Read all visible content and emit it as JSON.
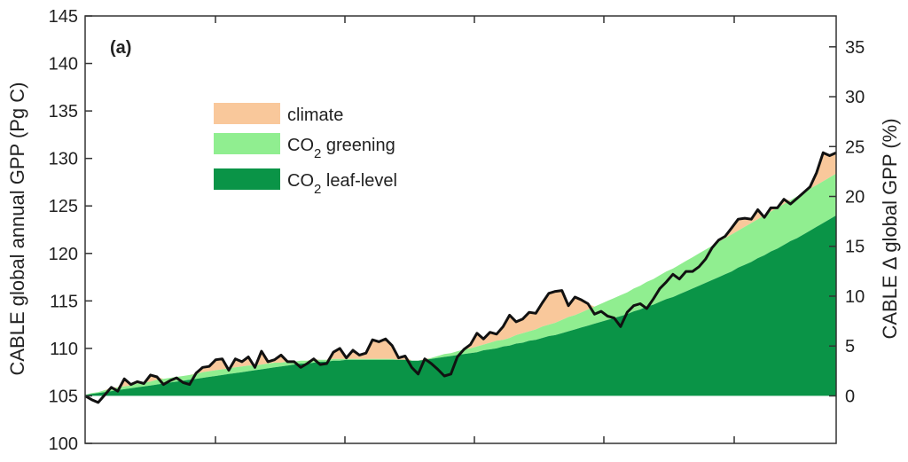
{
  "chart_data": {
    "type": "area",
    "panel_label": "(a)",
    "ylabel_left": "CABLE global annual GPP (Pg C)",
    "ylabel_right": "CABLE Δ  global GPP (%)",
    "ylim_left": [
      100,
      145
    ],
    "left_ticks": [
      100,
      105,
      110,
      115,
      120,
      125,
      130,
      135,
      140,
      145
    ],
    "right_ticks": [
      0,
      5,
      10,
      15,
      20,
      25,
      30,
      35
    ],
    "baseline": 105,
    "colors": {
      "climate": "#f9c89b",
      "co2_greening": "#90ee90",
      "co2_leaf_level": "#0a9447",
      "total_line": "#111111"
    },
    "legend_placement": "upper-left",
    "legend": [
      {
        "key": "climate",
        "label": "climate",
        "sub": ""
      },
      {
        "key": "co2_greening",
        "label": "CO",
        "sub": "2",
        "rest": " greening"
      },
      {
        "key": "co2_leaf_level",
        "label": "CO",
        "sub": "2",
        "rest": " leaf-level"
      }
    ],
    "x_count": 116,
    "series": [
      {
        "name": "total",
        "values": [
          105.0,
          104.6,
          104.3,
          105.1,
          105.9,
          105.5,
          106.8,
          106.2,
          106.5,
          106.3,
          107.2,
          107.0,
          106.2,
          106.6,
          106.9,
          106.4,
          106.2,
          107.4,
          108.0,
          108.1,
          108.8,
          108.9,
          107.7,
          108.9,
          108.6,
          109.1,
          108.0,
          109.7,
          108.6,
          108.8,
          109.3,
          108.6,
          108.6,
          108.0,
          108.4,
          108.9,
          108.3,
          108.4,
          109.6,
          110.0,
          109.0,
          109.8,
          109.3,
          109.5,
          110.9,
          110.7,
          111.0,
          110.3,
          109.0,
          109.2,
          108.0,
          107.3,
          108.9,
          108.4,
          107.8,
          107.1,
          107.3,
          109.1,
          109.9,
          110.4,
          111.6,
          111.0,
          111.7,
          111.5,
          112.3,
          113.5,
          112.8,
          113.1,
          113.8,
          113.7,
          114.8,
          115.8,
          116.0,
          116.1,
          114.5,
          115.4,
          115.1,
          114.7,
          113.6,
          113.9,
          113.4,
          113.2,
          112.3,
          113.8,
          114.5,
          114.7,
          114.2,
          115.2,
          116.3,
          117.0,
          117.8,
          117.3,
          118.1,
          118.1,
          118.6,
          119.4,
          120.6,
          121.4,
          121.8,
          122.7,
          123.6,
          123.7,
          123.6,
          124.6,
          123.8,
          124.8,
          124.8,
          125.7,
          125.2,
          125.8,
          126.4,
          127.0,
          128.5,
          130.6,
          130.3,
          130.6
        ]
      },
      {
        "name": "co2_greening_top",
        "values": [
          105.1,
          105.3,
          105.4,
          105.6,
          105.7,
          105.9,
          106.0,
          106.1,
          106.3,
          106.4,
          106.5,
          106.7,
          106.8,
          106.9,
          107.0,
          107.1,
          107.2,
          107.3,
          107.5,
          107.6,
          107.7,
          107.8,
          107.9,
          108.0,
          108.1,
          108.2,
          108.2,
          108.3,
          108.4,
          108.5,
          108.5,
          108.6,
          108.6,
          108.7,
          108.7,
          108.8,
          108.8,
          108.8,
          108.9,
          108.9,
          108.9,
          108.9,
          108.9,
          108.9,
          108.9,
          108.9,
          108.9,
          108.9,
          108.8,
          108.8,
          108.7,
          108.7,
          108.8,
          109.0,
          109.2,
          109.4,
          109.5,
          109.7,
          109.9,
          110.0,
          110.2,
          110.4,
          110.6,
          110.8,
          110.9,
          111.1,
          111.4,
          111.6,
          111.8,
          112.0,
          112.3,
          112.5,
          112.7,
          113.0,
          113.3,
          113.5,
          113.8,
          114.1,
          114.4,
          114.7,
          115.0,
          115.3,
          115.6,
          115.9,
          116.3,
          116.6,
          117.0,
          117.3,
          117.7,
          118.1,
          118.4,
          118.8,
          119.2,
          119.6,
          120.0,
          120.4,
          120.8,
          121.2,
          121.6,
          122.0,
          122.4,
          122.8,
          123.2,
          123.6,
          124.0,
          124.4,
          124.8,
          125.2,
          125.6,
          126.0,
          126.4,
          126.8,
          127.2,
          127.6,
          128.0,
          128.4
        ]
      },
      {
        "name": "co2_leaf_level_top",
        "values": [
          105.1,
          105.2,
          105.3,
          105.4,
          105.5,
          105.6,
          105.7,
          105.8,
          105.9,
          106.0,
          106.1,
          106.2,
          106.3,
          106.4,
          106.5,
          106.6,
          106.7,
          106.8,
          106.9,
          107.0,
          107.1,
          107.2,
          107.3,
          107.4,
          107.5,
          107.6,
          107.7,
          107.8,
          107.9,
          108.0,
          108.1,
          108.2,
          108.3,
          108.4,
          108.4,
          108.5,
          108.6,
          108.6,
          108.7,
          108.7,
          108.8,
          108.8,
          108.8,
          108.8,
          108.8,
          108.8,
          108.8,
          108.8,
          108.8,
          108.8,
          108.7,
          108.7,
          108.8,
          108.9,
          109.0,
          109.1,
          109.2,
          109.3,
          109.4,
          109.5,
          109.6,
          109.8,
          109.9,
          110.0,
          110.2,
          110.3,
          110.5,
          110.6,
          110.8,
          110.9,
          111.1,
          111.3,
          111.4,
          111.6,
          111.8,
          112.0,
          112.2,
          112.4,
          112.6,
          112.8,
          113.0,
          113.2,
          113.4,
          113.6,
          113.9,
          114.1,
          114.4,
          114.6,
          114.9,
          115.2,
          115.4,
          115.7,
          116.0,
          116.3,
          116.6,
          116.9,
          117.2,
          117.5,
          117.8,
          118.1,
          118.5,
          118.8,
          119.1,
          119.5,
          119.8,
          120.2,
          120.5,
          120.9,
          121.3,
          121.6,
          122.0,
          122.4,
          122.8,
          123.2,
          123.6,
          124.0
        ]
      }
    ]
  }
}
